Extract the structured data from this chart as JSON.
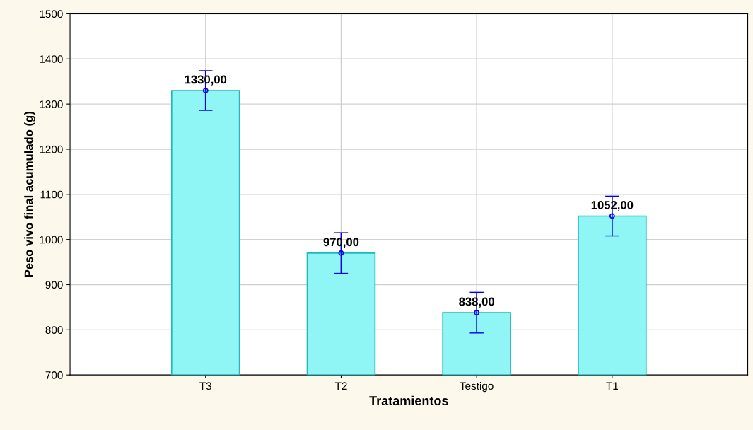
{
  "chart_data": {
    "type": "bar",
    "xlabel": "Tratamientos",
    "ylabel": "Peso vivo final acumulado (g)",
    "categories": [
      "T3",
      "T2",
      "Testigo",
      "T1"
    ],
    "series": [
      {
        "color": "#8ff5f5",
        "values": [
          1330,
          970,
          838,
          1052
        ],
        "errors": [
          44,
          45,
          45,
          44
        ],
        "value_labels": [
          "1330,00",
          "970,00",
          "838,00",
          "1052,00"
        ]
      },
      {
        "type": "scatter",
        "color": "#0000ee",
        "x": [
          "T3",
          "T2",
          "Testigo",
          "T1"
        ],
        "values": [
          1330,
          970,
          838,
          1052
        ]
      }
    ],
    "marker": "circle",
    "ylim": [
      700,
      1500
    ],
    "yticks": [
      700,
      800,
      900,
      1000,
      1100,
      1200,
      1300,
      1400,
      1500
    ],
    "grid": true
  }
}
